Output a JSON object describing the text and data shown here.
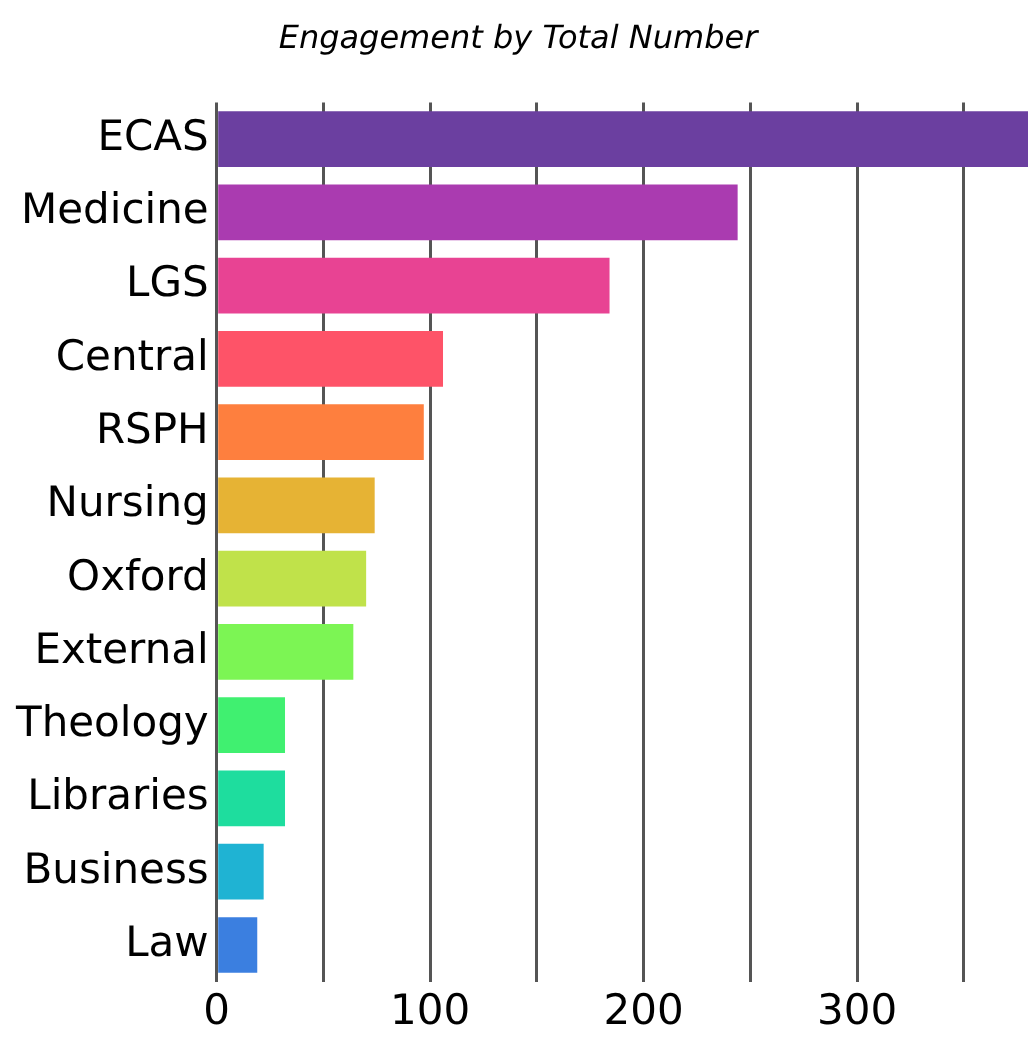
{
  "chart_data": {
    "type": "bar",
    "orientation": "horizontal",
    "title": "Engagement by Total Number",
    "categories": [
      "ECAS",
      "Medicine",
      "LGS",
      "Central",
      "RSPH",
      "Nursing",
      "Oxford",
      "External",
      "Theology",
      "Libraries",
      "Business",
      "Law"
    ],
    "values": [
      380,
      244,
      184,
      106,
      97,
      74,
      70,
      64,
      32,
      32,
      22,
      19
    ],
    "colors": [
      "#6b3fa0",
      "#aa3bb0",
      "#e84393",
      "#fe5368",
      "#fe7f3e",
      "#e6b334",
      "#c0e24a",
      "#7cf554",
      "#40f070",
      "#1edd9e",
      "#1fb3d3",
      "#3b7fe0"
    ],
    "xlim": [
      0,
      380
    ],
    "xticks": [
      0,
      {
        "value": 50,
        "label": null
      },
      100,
      {
        "value": 150,
        "label": null
      },
      200,
      {
        "value": 250,
        "label": null
      },
      300,
      {
        "value": 350,
        "label": null
      }
    ],
    "grid": "x"
  }
}
